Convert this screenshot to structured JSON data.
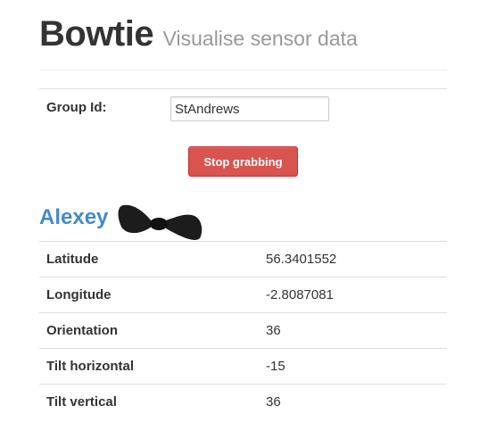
{
  "header": {
    "title": "Bowtie",
    "subtitle": "Visualise sensor data"
  },
  "form": {
    "group_label": "Group Id:",
    "group_value": "StAndrews",
    "stop_button_label": "Stop grabbing"
  },
  "person": {
    "name": "Alexey",
    "icon": "bowtie-icon"
  },
  "table": {
    "rows": [
      {
        "label": "Latitude",
        "value": "56.3401552"
      },
      {
        "label": "Longitude",
        "value": "-2.8087081"
      },
      {
        "label": "Orientation",
        "value": "36"
      },
      {
        "label": "Tilt horizontal",
        "value": "-15"
      },
      {
        "label": "Tilt vertical",
        "value": "36"
      }
    ]
  },
  "colors": {
    "button": "#d9534f",
    "name": "#428bca",
    "subtitle": "#999999"
  }
}
